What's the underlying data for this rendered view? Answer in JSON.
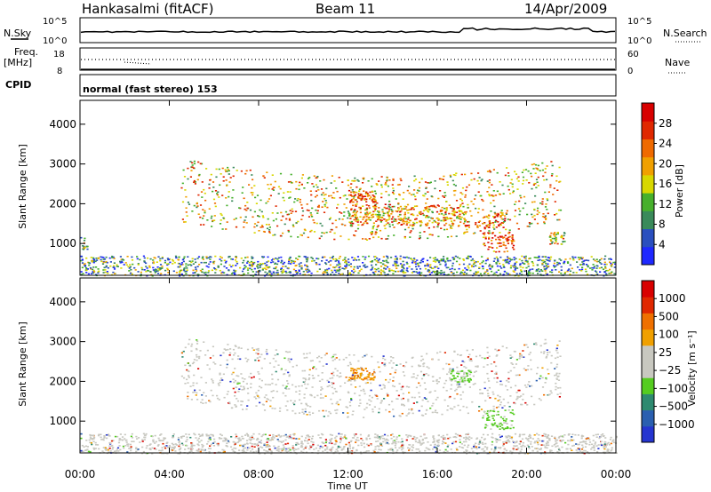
{
  "header": {
    "station": "Hankasalmi (fitACF)",
    "beam": "Beam 11",
    "date": "14/Apr/2009"
  },
  "status_panels": {
    "nsky_label": "N.Sky",
    "nsky_ticks": [
      "10^5",
      "10^0"
    ],
    "nsearch_label": "N.Search",
    "nsearch_ticks": [
      "10^5",
      "10^0"
    ],
    "freq_label": "Freq.",
    "freq_unit": "[MHz]",
    "freq_ticks": [
      "18",
      "8"
    ],
    "nave_label": "Nave",
    "nave_ticks": [
      "60",
      "0"
    ],
    "cpid_label": "CPID",
    "cpid_text": "normal (fast stereo) 153"
  },
  "chart_data": [
    {
      "type": "heatmap",
      "name": "power",
      "ylabel": "Slant Range [km]",
      "xlabel": "Time UT",
      "x_ticks": [
        "00:00",
        "04:00",
        "08:00",
        "12:00",
        "16:00",
        "20:00",
        "00:00"
      ],
      "xlim_hours": [
        0,
        24
      ],
      "ylim": [
        200,
        4600
      ],
      "y_ticks": [
        1000,
        2000,
        3000,
        4000
      ],
      "colorbar": {
        "label": "Power [dB]",
        "ticks": [
          "4",
          "8",
          "12",
          "16",
          "20",
          "24",
          "28"
        ],
        "colors": [
          "#1e28ff",
          "#2a4fbf",
          "#3a8a5a",
          "#47b02c",
          "#d8d800",
          "#f0a000",
          "#ef6a00",
          "#e02800",
          "#d80000"
        ]
      },
      "regions": [
        {
          "t0": 4.5,
          "t1": 21.5,
          "r0": 1300,
          "r1": 2500,
          "level": 0.65,
          "desc": "main arc band"
        },
        {
          "t0": 12.0,
          "t1": 17.5,
          "r0": 1450,
          "r1": 2000,
          "level": 0.75
        },
        {
          "t0": 18.0,
          "t1": 19.4,
          "r0": 800,
          "r1": 1300,
          "level": 0.9
        },
        {
          "t0": 18.0,
          "t1": 19.0,
          "r0": 1400,
          "r1": 1800,
          "level": 0.8
        },
        {
          "t0": 21.0,
          "t1": 21.7,
          "r0": 1000,
          "r1": 1300,
          "level": 0.6
        },
        {
          "t0": 0.0,
          "t1": 24.0,
          "r0": 200,
          "r1": 700,
          "level": 0.35
        },
        {
          "t0": 0.0,
          "t1": 0.3,
          "r0": 850,
          "r1": 1200,
          "level": 0.5
        },
        {
          "t0": 12.0,
          "t1": 13.2,
          "r0": 2050,
          "r1": 2350,
          "level": 0.85
        }
      ]
    },
    {
      "type": "heatmap",
      "name": "velocity",
      "ylabel": "Slant Range [km]",
      "xlabel": "Time UT",
      "x_ticks": [
        "00:00",
        "04:00",
        "08:00",
        "12:00",
        "16:00",
        "20:00",
        "00:00"
      ],
      "xlim_hours": [
        0,
        24
      ],
      "ylim": [
        200,
        4600
      ],
      "y_ticks": [
        1000,
        2000,
        3000,
        4000
      ],
      "colorbar": {
        "label": "Velocity [m s⁻¹]",
        "ticks": [
          "1000",
          "500",
          "100",
          "25",
          "−25",
          "−100",
          "−500",
          "−1000"
        ],
        "colors": [
          "#2535d0",
          "#2a5fb0",
          "#2e8a70",
          "#55cc20",
          "#c8c8c0",
          "#c8c8c0",
          "#f0a000",
          "#ef7000",
          "#e02800",
          "#d80000"
        ]
      },
      "regions": [
        {
          "t0": 4.5,
          "t1": 21.5,
          "r0": 1300,
          "r1": 2500,
          "level": 0.5
        },
        {
          "t0": 12.0,
          "t1": 13.2,
          "r0": 2050,
          "r1": 2350,
          "level": 0.8
        },
        {
          "t0": 16.5,
          "t1": 17.5,
          "r0": 2000,
          "r1": 2300,
          "level": 0.3
        },
        {
          "t0": 18.0,
          "t1": 19.4,
          "r0": 800,
          "r1": 1300,
          "level": 0.3
        },
        {
          "t0": 0.0,
          "t1": 24.0,
          "r0": 200,
          "r1": 700,
          "level": 0.5
        }
      ]
    }
  ]
}
